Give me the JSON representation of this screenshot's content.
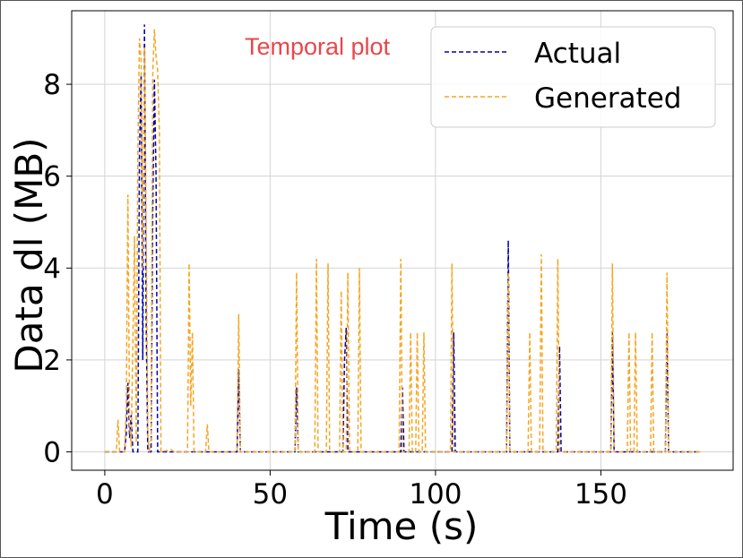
{
  "chart_data": {
    "type": "line",
    "annotation": "Temporal plot",
    "xlabel": "Time (s)",
    "ylabel": "Data dl (MB)",
    "xlim": [
      -10,
      190
    ],
    "ylim": [
      -0.4,
      9.6
    ],
    "xticks": [
      0,
      50,
      100,
      150
    ],
    "yticks": [
      0,
      2,
      4,
      6,
      8
    ],
    "grid": true,
    "legend_position": "top-right",
    "series": [
      {
        "name": "Actual",
        "color": "#0000aa",
        "style": "dashed",
        "points": [
          [
            0,
            0
          ],
          [
            6,
            0
          ],
          [
            6.5,
            0.4
          ],
          [
            7,
            1.5
          ],
          [
            7.5,
            0.3
          ],
          [
            8,
            0.8
          ],
          [
            8.5,
            0
          ],
          [
            10,
            0
          ],
          [
            10.5,
            6.5
          ],
          [
            11,
            8.2
          ],
          [
            11.5,
            2
          ],
          [
            12,
            9.3
          ],
          [
            12.5,
            3
          ],
          [
            13,
            0
          ],
          [
            14,
            0
          ],
          [
            14.5,
            5.2
          ],
          [
            15,
            8.1
          ],
          [
            15.5,
            6
          ],
          [
            16,
            0
          ],
          [
            40,
            0
          ],
          [
            40.5,
            1.8
          ],
          [
            41,
            0
          ],
          [
            57.5,
            0
          ],
          [
            58,
            1.4
          ],
          [
            58.5,
            0
          ],
          [
            72,
            0
          ],
          [
            72.5,
            2
          ],
          [
            73,
            2.7
          ],
          [
            73.5,
            0
          ],
          [
            89.5,
            0
          ],
          [
            90,
            1.4
          ],
          [
            90.5,
            0
          ],
          [
            105,
            0
          ],
          [
            105.5,
            2.6
          ],
          [
            106,
            0
          ],
          [
            121.5,
            0
          ],
          [
            122,
            4.6
          ],
          [
            122.5,
            0
          ],
          [
            137,
            0
          ],
          [
            137.5,
            2.3
          ],
          [
            138,
            0
          ],
          [
            153,
            0
          ],
          [
            153.5,
            2.6
          ],
          [
            154,
            0
          ],
          [
            169.5,
            0
          ],
          [
            170,
            2.6
          ],
          [
            170.5,
            0
          ],
          [
            180,
            0
          ]
        ]
      },
      {
        "name": "Generated",
        "color": "#f5a623",
        "style": "dashed",
        "points": [
          [
            0,
            0
          ],
          [
            3.5,
            0
          ],
          [
            4,
            0.7
          ],
          [
            4.5,
            0
          ],
          [
            6,
            0
          ],
          [
            6.5,
            1
          ],
          [
            7,
            5.6
          ],
          [
            7.5,
            0.6
          ],
          [
            8,
            0.1
          ],
          [
            9,
            4.7
          ],
          [
            9.5,
            0.2
          ],
          [
            10,
            6.5
          ],
          [
            10.5,
            9
          ],
          [
            11,
            8.5
          ],
          [
            11.5,
            4
          ],
          [
            12,
            8.8
          ],
          [
            12.5,
            5
          ],
          [
            13,
            0.4
          ],
          [
            13.5,
            0
          ],
          [
            14,
            0.3
          ],
          [
            14.5,
            8.2
          ],
          [
            15,
            9.2
          ],
          [
            15.5,
            8.6
          ],
          [
            16,
            8.3
          ],
          [
            16.5,
            7
          ],
          [
            17,
            0
          ],
          [
            20,
            0.05
          ],
          [
            21,
            0
          ],
          [
            25,
            0
          ],
          [
            25.5,
            4.1
          ],
          [
            26,
            1
          ],
          [
            26.5,
            2.6
          ],
          [
            27,
            0
          ],
          [
            30.5,
            0
          ],
          [
            31,
            0.6
          ],
          [
            31.5,
            0
          ],
          [
            40,
            0
          ],
          [
            40.5,
            3
          ],
          [
            41,
            0
          ],
          [
            57.5,
            0
          ],
          [
            58,
            3.9
          ],
          [
            58.5,
            0
          ],
          [
            63.5,
            0
          ],
          [
            64,
            4.2
          ],
          [
            64.5,
            0
          ],
          [
            67,
            0
          ],
          [
            67.5,
            4.1
          ],
          [
            68,
            0
          ],
          [
            71,
            0
          ],
          [
            71.5,
            3.5
          ],
          [
            72,
            0
          ],
          [
            73,
            0
          ],
          [
            73.5,
            3.9
          ],
          [
            74,
            0
          ],
          [
            76.5,
            0
          ],
          [
            77,
            4
          ],
          [
            77.5,
            0
          ],
          [
            89,
            0
          ],
          [
            89.5,
            4.2
          ],
          [
            90,
            0
          ],
          [
            92,
            0
          ],
          [
            92.5,
            2.6
          ],
          [
            93,
            0
          ],
          [
            94,
            0
          ],
          [
            94.5,
            2.6
          ],
          [
            95,
            0
          ],
          [
            96,
            0
          ],
          [
            96.5,
            2.6
          ],
          [
            97,
            0
          ],
          [
            104.5,
            0
          ],
          [
            105,
            4.1
          ],
          [
            105.5,
            0
          ],
          [
            121.5,
            0
          ],
          [
            122,
            3.9
          ],
          [
            122.5,
            0
          ],
          [
            128,
            0
          ],
          [
            128.5,
            2.6
          ],
          [
            129,
            0
          ],
          [
            131.5,
            0
          ],
          [
            132,
            4.3
          ],
          [
            132.5,
            0
          ],
          [
            136.5,
            0
          ],
          [
            137,
            4.2
          ],
          [
            137.5,
            0
          ],
          [
            153,
            0
          ],
          [
            153.5,
            4.1
          ],
          [
            154,
            0
          ],
          [
            158,
            0
          ],
          [
            158.5,
            2.6
          ],
          [
            159,
            0
          ],
          [
            160,
            0
          ],
          [
            160.5,
            2.6
          ],
          [
            161,
            0
          ],
          [
            165,
            0
          ],
          [
            165.5,
            2.6
          ],
          [
            166,
            0
          ],
          [
            169.5,
            0
          ],
          [
            170,
            3.9
          ],
          [
            170.5,
            0
          ],
          [
            180,
            0
          ]
        ]
      }
    ]
  }
}
